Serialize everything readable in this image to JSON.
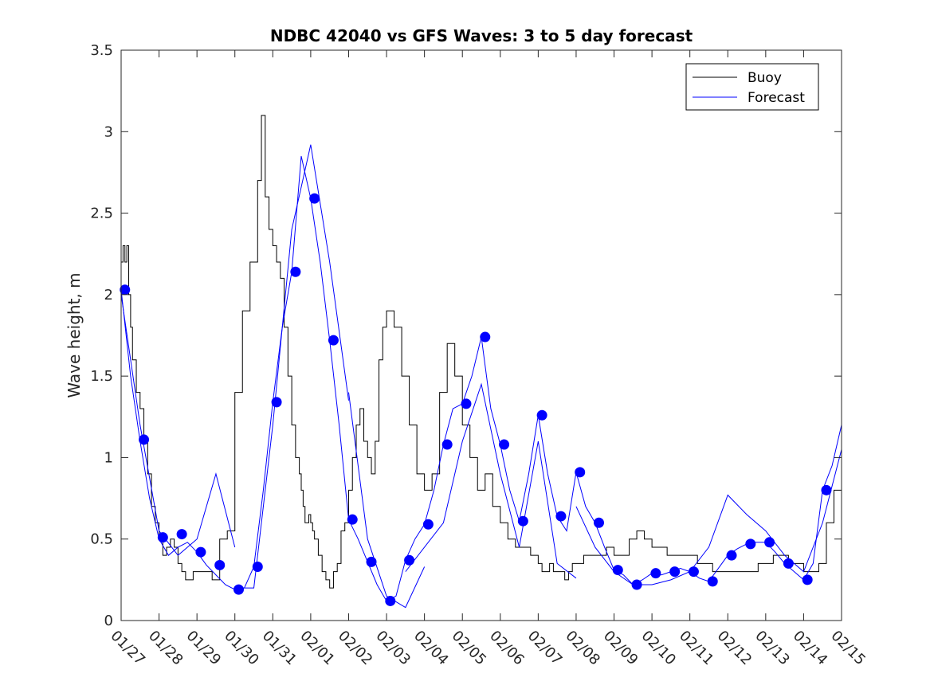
{
  "chart_data": {
    "type": "line",
    "title": "NDBC 42040 vs GFS Waves: 3 to 5 day forecast",
    "xlabel": "",
    "ylabel": "Wave height, m",
    "xlim": [
      0,
      19
    ],
    "ylim": [
      0,
      3.5
    ],
    "yticks": [
      0,
      0.5,
      1,
      1.5,
      2,
      2.5,
      3,
      3.5
    ],
    "ytick_labels": [
      "0",
      "0.5",
      "1",
      "1.5",
      "2",
      "2.5",
      "3",
      "3.5"
    ],
    "xtick_labels": [
      "01/27",
      "01/28",
      "01/29",
      "01/30",
      "01/31",
      "02/01",
      "02/02",
      "02/03",
      "02/04",
      "02/05",
      "02/06",
      "02/07",
      "02/08",
      "02/09",
      "02/10",
      "02/11",
      "02/12",
      "02/13",
      "02/14",
      "02/15"
    ],
    "legend": {
      "position": "top-right",
      "entries": [
        "Buoy",
        "Forecast"
      ]
    },
    "colors": {
      "buoy": "#000000",
      "forecast": "#0000ff",
      "marker": "#0000ff",
      "axis": "#262626"
    },
    "series": [
      {
        "name": "Buoy",
        "x": [
          0,
          0.05,
          0.1,
          0.15,
          0.2,
          0.25,
          0.3,
          0.4,
          0.5,
          0.6,
          0.7,
          0.8,
          0.9,
          1.0,
          1.1,
          1.2,
          1.3,
          1.4,
          1.5,
          1.6,
          1.7,
          1.8,
          1.9,
          2.0,
          2.2,
          2.4,
          2.6,
          2.8,
          3.0,
          3.2,
          3.4,
          3.6,
          3.7,
          3.8,
          3.9,
          4.0,
          4.1,
          4.2,
          4.3,
          4.4,
          4.5,
          4.6,
          4.7,
          4.75,
          4.8,
          4.85,
          4.9,
          4.95,
          5.0,
          5.05,
          5.1,
          5.2,
          5.3,
          5.4,
          5.5,
          5.6,
          5.7,
          5.8,
          5.9,
          6.0,
          6.1,
          6.2,
          6.3,
          6.4,
          6.5,
          6.6,
          6.7,
          6.8,
          6.9,
          7.0,
          7.2,
          7.4,
          7.6,
          7.8,
          8.0,
          8.2,
          8.4,
          8.6,
          8.8,
          9.0,
          9.2,
          9.4,
          9.6,
          9.8,
          10.0,
          10.2,
          10.4,
          10.6,
          10.8,
          11.0,
          11.1,
          11.2,
          11.3,
          11.4,
          11.5,
          11.6,
          11.7,
          11.8,
          11.9,
          12.0,
          12.2,
          12.4,
          12.6,
          12.8,
          13.0,
          13.2,
          13.4,
          13.6,
          13.8,
          14.0,
          14.4,
          14.8,
          15.2,
          15.6,
          16.0,
          16.4,
          16.8,
          17.2,
          17.6,
          18.0,
          18.4,
          18.6,
          18.8,
          19.0
        ],
        "values": [
          2.2,
          2.3,
          2.2,
          2.3,
          2.0,
          1.8,
          1.6,
          1.4,
          1.3,
          1.1,
          0.9,
          0.7,
          0.6,
          0.5,
          0.4,
          0.45,
          0.5,
          0.45,
          0.35,
          0.3,
          0.25,
          0.25,
          0.3,
          0.3,
          0.3,
          0.25,
          0.5,
          0.55,
          1.4,
          1.9,
          2.2,
          2.7,
          3.1,
          2.6,
          2.4,
          2.3,
          2.2,
          2.1,
          1.8,
          1.5,
          1.2,
          1.0,
          0.9,
          0.8,
          0.7,
          0.6,
          0.6,
          0.65,
          0.6,
          0.55,
          0.5,
          0.4,
          0.3,
          0.25,
          0.2,
          0.3,
          0.35,
          0.55,
          0.6,
          0.8,
          1.0,
          1.2,
          1.3,
          1.1,
          1.0,
          0.9,
          1.1,
          1.6,
          1.8,
          1.9,
          1.8,
          1.5,
          1.2,
          0.9,
          0.8,
          0.9,
          1.4,
          1.7,
          1.5,
          1.2,
          1.0,
          0.8,
          0.9,
          0.7,
          0.6,
          0.5,
          0.45,
          0.45,
          0.4,
          0.35,
          0.3,
          0.3,
          0.35,
          0.3,
          0.3,
          0.3,
          0.25,
          0.3,
          0.35,
          0.35,
          0.4,
          0.4,
          0.4,
          0.45,
          0.4,
          0.4,
          0.5,
          0.55,
          0.5,
          0.45,
          0.4,
          0.4,
          0.35,
          0.3,
          0.3,
          0.3,
          0.35,
          0.4,
          0.35,
          0.3,
          0.35,
          0.6,
          0.8,
          1.0
        ]
      },
      {
        "name": "Forecast",
        "x": [
          0,
          0.25,
          0.5,
          0.75,
          1.0,
          1.25,
          1.5,
          1.75,
          2.0,
          2.25,
          2.5,
          2.75,
          3.0,
          3.25,
          3.5,
          3.75,
          4.0,
          4.25,
          4.5,
          4.75,
          5.0,
          5.25,
          5.5,
          5.75,
          6.0,
          6.25,
          6.5,
          6.75,
          7.0,
          7.25,
          7.5,
          7.75,
          8.0,
          8.25,
          8.5,
          8.75,
          9.0,
          9.25,
          9.5,
          9.75,
          10.0,
          10.25,
          10.5,
          10.75,
          11.0,
          11.25,
          11.5,
          11.75,
          12.0,
          12.25,
          12.5,
          12.75,
          13.0,
          13.25,
          13.5,
          13.75,
          14.0,
          14.25,
          14.5,
          14.75,
          15.0,
          15.25,
          15.5,
          15.75,
          16.0,
          16.25,
          16.5,
          16.75,
          17.0,
          17.25,
          17.5,
          17.75,
          18.0,
          18.25,
          18.5,
          18.75,
          19.0
        ],
        "values": [
          2.03,
          1.5,
          1.1,
          0.75,
          0.5,
          0.4,
          0.45,
          0.48,
          0.42,
          0.34,
          0.28,
          0.22,
          0.19,
          0.2,
          0.33,
          0.8,
          1.34,
          1.8,
          2.14,
          2.85,
          2.59,
          2.2,
          1.72,
          1.2,
          0.62,
          0.5,
          0.36,
          0.22,
          0.12,
          0.15,
          0.37,
          0.5,
          0.59,
          0.8,
          1.08,
          1.3,
          1.33,
          1.5,
          1.74,
          1.3,
          1.08,
          0.8,
          0.61,
          0.9,
          1.26,
          0.9,
          0.64,
          0.55,
          0.91,
          0.7,
          0.6,
          0.45,
          0.31,
          0.28,
          0.22,
          0.25,
          0.29,
          0.28,
          0.3,
          0.32,
          0.3,
          0.26,
          0.24,
          0.32,
          0.4,
          0.44,
          0.47,
          0.48,
          0.48,
          0.42,
          0.35,
          0.3,
          0.25,
          0.35,
          0.8,
          0.95,
          1.2
        ]
      }
    ],
    "forecast_ensemble": [
      {
        "x": [
          0,
          0.5,
          1.0,
          1.5,
          2.0,
          2.5,
          3.0
        ],
        "values": [
          2.0,
          1.2,
          0.55,
          0.4,
          0.5,
          0.9,
          0.45
        ]
      },
      {
        "x": [
          3.0,
          3.5,
          4.0,
          4.5,
          5.0,
          5.5,
          6.0
        ],
        "values": [
          0.2,
          0.2,
          1.2,
          2.4,
          2.92,
          2.2,
          1.35
        ]
      },
      {
        "x": [
          6.0,
          6.5,
          7.0,
          7.5,
          8.0
        ],
        "values": [
          1.4,
          0.5,
          0.15,
          0.08,
          0.33
        ]
      },
      {
        "x": [
          7.5,
          8.0,
          8.5,
          9.0,
          9.5,
          10.0,
          10.5,
          11.0,
          11.5,
          12.0
        ],
        "values": [
          0.3,
          0.45,
          0.6,
          1.1,
          1.45,
          0.9,
          0.45,
          1.1,
          0.35,
          0.26
        ]
      },
      {
        "x": [
          12.0,
          12.5,
          13.0,
          13.5,
          14.0,
          14.5,
          15.0,
          15.5,
          16.0,
          16.5,
          17.0,
          17.5,
          18.0,
          18.5,
          19.0
        ],
        "values": [
          0.7,
          0.45,
          0.3,
          0.22,
          0.22,
          0.25,
          0.3,
          0.45,
          0.77,
          0.65,
          0.55,
          0.4,
          0.3,
          0.6,
          1.05
        ]
      }
    ],
    "markers": {
      "x": [
        0.1,
        0.6,
        1.1,
        1.6,
        2.1,
        2.6,
        3.1,
        3.6,
        4.1,
        4.6,
        5.1,
        5.6,
        6.1,
        6.6,
        7.1,
        7.6,
        8.1,
        8.6,
        9.1,
        9.6,
        10.1,
        10.6,
        11.1,
        11.6,
        12.1,
        12.6,
        13.1,
        13.6,
        14.1,
        14.6,
        15.1,
        15.6,
        16.1,
        16.6,
        17.1,
        17.6,
        18.1,
        18.6
      ],
      "values": [
        2.03,
        1.11,
        0.51,
        0.53,
        0.42,
        0.34,
        0.19,
        0.33,
        1.34,
        2.14,
        2.59,
        1.72,
        0.62,
        0.36,
        0.12,
        0.37,
        0.59,
        1.08,
        1.33,
        1.74,
        1.08,
        0.61,
        1.26,
        0.64,
        0.91,
        0.6,
        0.31,
        0.22,
        0.29,
        0.3,
        0.3,
        0.24,
        0.4,
        0.47,
        0.48,
        0.35,
        0.25,
        0.8
      ]
    }
  }
}
